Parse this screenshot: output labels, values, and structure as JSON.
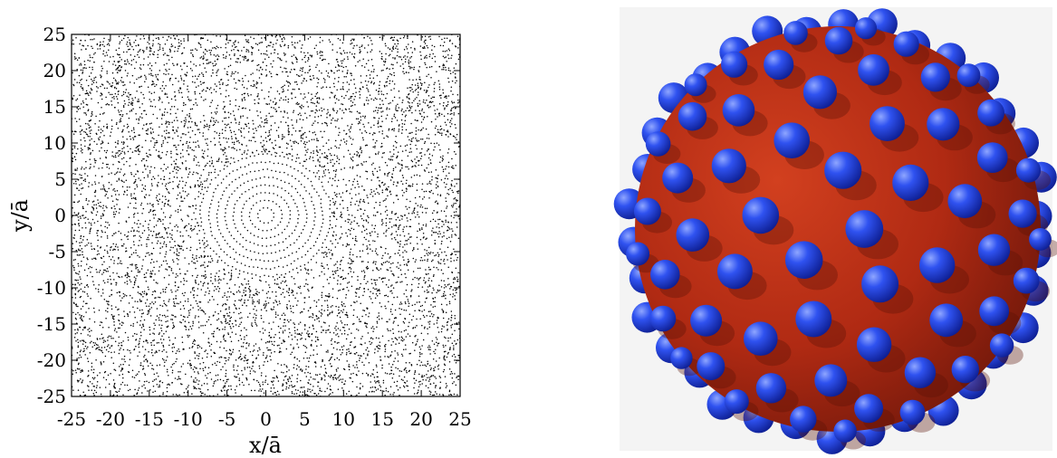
{
  "chart_data": [
    {
      "type": "scatter",
      "xlabel": "x/ā",
      "ylabel": "y/ā",
      "xlim": [
        -25,
        25
      ],
      "ylim": [
        -25,
        25
      ],
      "x_ticks": [
        -25,
        -20,
        -15,
        -10,
        -5,
        0,
        5,
        10,
        15,
        20,
        25
      ],
      "y_ticks": [
        -25,
        -20,
        -15,
        -10,
        -5,
        0,
        5,
        10,
        15,
        20,
        25
      ],
      "x_tick_labels": [
        "-25",
        "-20",
        "-15",
        "-10",
        "-5",
        "0",
        "5",
        "10",
        "15",
        "20",
        "25"
      ],
      "y_tick_labels": [
        "-25",
        "-20",
        "-15",
        "-10",
        "-5",
        "0",
        "5",
        "10",
        "15",
        "20",
        "25"
      ],
      "grid": false,
      "marker_color": "#000000",
      "center_rings": {
        "center": [
          0,
          0
        ],
        "spacing": 1,
        "count": 8
      },
      "description_points": "dense field of small black dots; concentric ring ordering near the origin, disordered elsewhere"
    },
    {
      "type": "illustration",
      "subject": "large sphere covered by small spheres",
      "colors": {
        "large_sphere": "#b52a12",
        "small_spheres": "#1f3fe0",
        "background": "#f4f4f4"
      }
    }
  ]
}
